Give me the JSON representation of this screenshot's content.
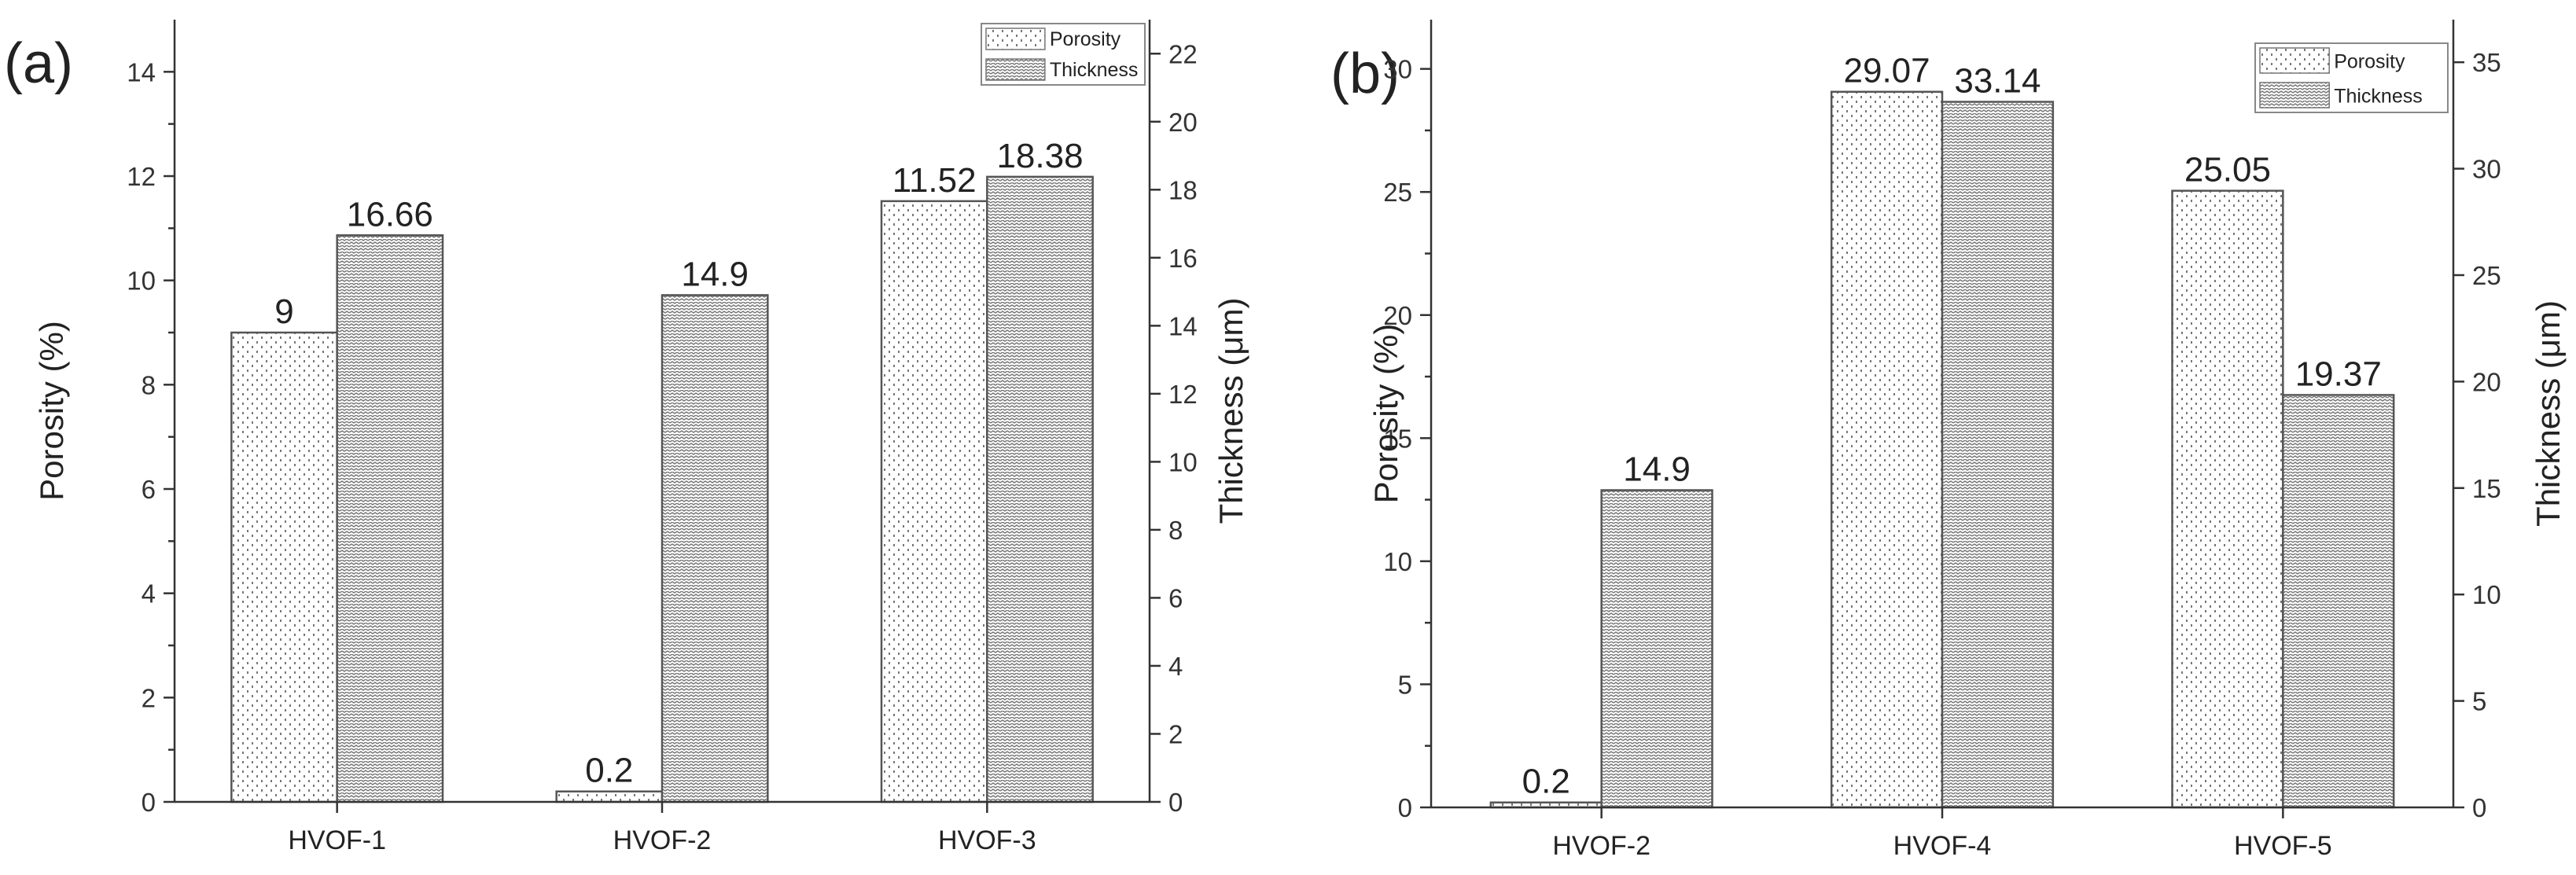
{
  "chart_data": [
    {
      "panel_label": "(a)",
      "type": "bar",
      "categories": [
        "HVOF-1",
        "HVOF-2",
        "HVOF-3"
      ],
      "series": [
        {
          "name": "Porosity",
          "axis": "left",
          "values": [
            9,
            0.2,
            11.52
          ],
          "labels": [
            "9",
            "0.2",
            "11.52"
          ]
        },
        {
          "name": "Thickness",
          "axis": "right",
          "values": [
            16.66,
            14.9,
            18.38
          ],
          "labels": [
            "16.66",
            "14.9",
            "18.38"
          ]
        }
      ],
      "ylabel": "Porosity (%)",
      "ylim": [
        0,
        15
      ],
      "yticks": [
        0,
        2,
        4,
        6,
        8,
        10,
        12,
        14
      ],
      "y2label": "Thickness (μm)",
      "y2lim": [
        0,
        23
      ],
      "y2ticks": [
        0,
        2,
        4,
        6,
        8,
        10,
        12,
        14,
        16,
        18,
        20,
        22
      ],
      "legend": [
        "Porosity",
        "Thickness"
      ],
      "legend_position": "top-right"
    },
    {
      "panel_label": "(b)",
      "type": "bar",
      "categories": [
        "HVOF-2",
        "HVOF-4",
        "HVOF-5"
      ],
      "series": [
        {
          "name": "Porosity",
          "axis": "left",
          "values": [
            0.2,
            29.07,
            25.05
          ],
          "labels": [
            "0.2",
            "29.07",
            "25.05"
          ]
        },
        {
          "name": "Thickness",
          "axis": "right",
          "values": [
            14.9,
            33.14,
            19.37
          ],
          "labels": [
            "14.9",
            "33.14",
            "19.37"
          ]
        }
      ],
      "ylabel": "Porosity (%)",
      "ylim": [
        0,
        32
      ],
      "yticks": [
        0,
        5,
        10,
        15,
        20,
        25,
        30
      ],
      "y2label": "Thickness (μm)",
      "y2lim": [
        0,
        37
      ],
      "y2ticks": [
        0,
        5,
        10,
        15,
        20,
        25,
        30,
        35
      ],
      "legend": [
        "Porosity",
        "Thickness"
      ],
      "legend_position": "top-right"
    }
  ]
}
